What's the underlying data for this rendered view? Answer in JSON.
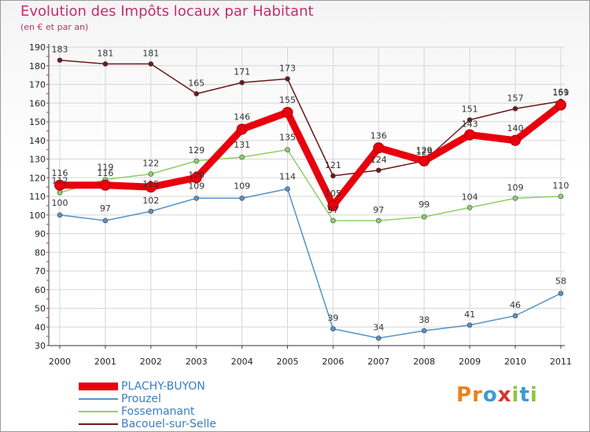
{
  "header": {
    "title": "Evolution des Impôts locaux par Habitant",
    "subtitle": "(en € et par an)"
  },
  "logo": {
    "letters": [
      "P",
      "r",
      "o",
      "x",
      "i",
      "t",
      "i"
    ],
    "colors": [
      "#e8821e",
      "#e8821e",
      "#3a9ad9",
      "#d9342b",
      "#8dc63f",
      "#3a9ad9",
      "#8dc63f"
    ]
  },
  "chart_data": {
    "type": "line",
    "title": "Evolution des Impôts locaux par Habitant",
    "subtitle": "(en € et par an)",
    "xlabel": "",
    "ylabel": "",
    "categories": [
      "2000",
      "2001",
      "2002",
      "2003",
      "2004",
      "2005",
      "2006",
      "2007",
      "2008",
      "2009",
      "2010",
      "2011"
    ],
    "ylim": [
      30,
      190
    ],
    "yticks": [
      30,
      40,
      50,
      60,
      70,
      80,
      90,
      100,
      110,
      120,
      130,
      140,
      150,
      160,
      170,
      180,
      190
    ],
    "grid": true,
    "legend_position": "bottom-left",
    "series": [
      {
        "name": "Bacouel-sur-Selle",
        "color": "#6b1a1a",
        "values": [
          183,
          181,
          181,
          165,
          171,
          173,
          121,
          124,
          129,
          151,
          157,
          161
        ],
        "labels": [
          "183",
          "181",
          "181",
          "165",
          "171",
          "173",
          "121",
          "124",
          "129",
          "151",
          "157",
          "161"
        ]
      },
      {
        "name": "Fossemanant",
        "color": "#8dd068",
        "values": [
          112,
          119,
          122,
          129,
          131,
          135,
          97,
          97,
          99,
          104,
          109,
          110
        ],
        "labels": [
          "112",
          "119",
          "122",
          "129",
          "131",
          "135",
          "97",
          "97",
          "99",
          "104",
          "109",
          "110"
        ]
      },
      {
        "name": "Prouzel",
        "color": "#5592c8",
        "values": [
          100,
          97,
          102,
          109,
          109,
          114,
          39,
          34,
          38,
          41,
          46,
          58
        ],
        "labels": [
          "100",
          "97",
          "102",
          "109",
          "109",
          "114",
          "39",
          "34",
          "38",
          "41",
          "46",
          "58"
        ]
      },
      {
        "name": "PLACHY-BUYON",
        "color": "#e8000d",
        "values": [
          116,
          116,
          115,
          120,
          146,
          155,
          105,
          136,
          129,
          143,
          140,
          159
        ],
        "labels": [
          "116",
          "116",
          "115",
          "120",
          "146",
          "155",
          "105",
          "136",
          "129",
          "143",
          "140",
          "159"
        ]
      }
    ],
    "legend": [
      "PLACHY-BUYON",
      "Prouzel",
      "Fossemanant",
      "Bacouel-sur-Selle"
    ]
  }
}
